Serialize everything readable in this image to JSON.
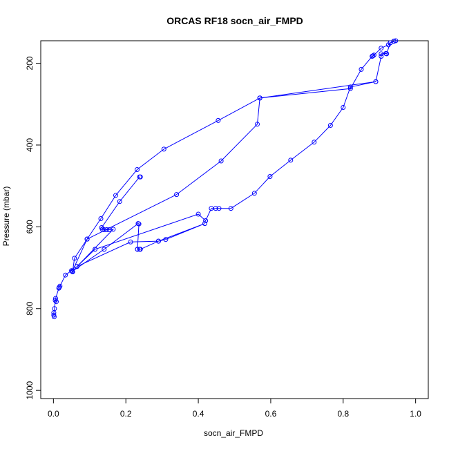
{
  "chart_data": {
    "type": "line",
    "title": "ORCAS RF18 socn_air_FMPD",
    "xlabel": "socn_air_FMPD",
    "ylabel": "Pressure (mbar)",
    "xlim": [
      -0.035,
      1.035
    ],
    "ylim": [
      1020,
      145
    ],
    "y_inverted": true,
    "x_ticks": [
      {
        "value": 0.0,
        "label": "0.0"
      },
      {
        "value": 0.2,
        "label": "0.2"
      },
      {
        "value": 0.4,
        "label": "0.4"
      },
      {
        "value": 0.6,
        "label": "0.6"
      },
      {
        "value": 0.8,
        "label": "0.8"
      },
      {
        "value": 1.0,
        "label": "1.0"
      }
    ],
    "y_ticks": [
      {
        "value": 200,
        "label": "200"
      },
      {
        "value": 400,
        "label": "400"
      },
      {
        "value": 600,
        "label": "600"
      },
      {
        "value": 800,
        "label": "800"
      },
      {
        "value": 1000,
        "label": "1000"
      }
    ],
    "grid": false,
    "color": "#0000ff",
    "marker": "open-circle",
    "series": [
      {
        "x": [
          0.002,
          0.001,
          0.001,
          0.003,
          0.005,
          0.008,
          0.006,
          0.015,
          0.016,
          0.018,
          0.033,
          0.05,
          0.053,
          0.058,
          0.093,
          0.131,
          0.172,
          0.231,
          0.305,
          0.455,
          0.57
        ],
        "y": [
          820,
          816,
          810,
          800,
          780,
          783,
          775,
          750,
          748,
          745,
          718,
          707,
          710,
          677,
          630,
          580,
          523,
          460,
          410,
          340,
          285
        ]
      },
      {
        "x": [
          0.57,
          0.82,
          0.85,
          0.88,
          0.882,
          0.885,
          0.905,
          0.925,
          0.93,
          0.945,
          0.94
        ],
        "y": [
          285,
          262,
          215,
          183,
          182,
          180,
          163,
          155,
          150,
          145,
          146
        ]
      },
      {
        "x": [
          0.94,
          0.93,
          0.92,
          0.918,
          0.905,
          0.905,
          0.89,
          0.82,
          0.8,
          0.765,
          0.72,
          0.655,
          0.598,
          0.555,
          0.49,
          0.457,
          0.448,
          0.436,
          0.42,
          0.4,
          0.115,
          0.065
        ],
        "y": [
          146,
          150,
          177,
          176,
          177,
          183,
          245,
          258,
          308,
          352,
          393,
          437,
          477,
          518,
          555,
          555,
          555,
          555,
          585,
          569,
          655,
          697
        ]
      },
      {
        "x": [
          0.065,
          0.213,
          0.29,
          0.31,
          0.418,
          0.29,
          0.24,
          0.238,
          0.232
        ],
        "y": [
          697,
          637,
          635,
          631,
          592,
          635,
          655,
          655,
          655
        ]
      },
      {
        "x": [
          0.232,
          0.236,
          0.234,
          0.14,
          0.052,
          0.093
        ],
        "y": [
          655,
          593,
          592,
          655,
          709,
          630
        ]
      },
      {
        "x": [
          0.093,
          0.34,
          0.463,
          0.563,
          0.57,
          0.89
        ],
        "y": [
          630,
          521,
          439,
          349,
          285,
          245
        ]
      },
      {
        "x": [
          0.052,
          0.165,
          0.154,
          0.147,
          0.14,
          0.135,
          0.133,
          0.183,
          0.238,
          0.24
        ],
        "y": [
          709,
          606,
          607,
          607,
          607,
          606,
          602,
          538,
          478,
          478
        ]
      }
    ]
  }
}
